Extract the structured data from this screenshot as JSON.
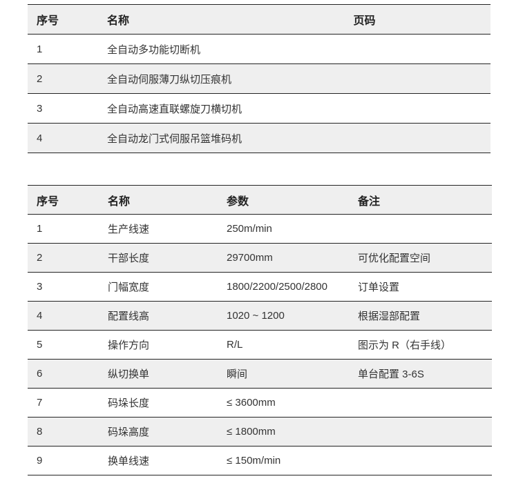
{
  "table1": {
    "headers": [
      "序号",
      "名称",
      "页码"
    ],
    "rows": [
      [
        "1",
        "全自动多功能切断机",
        ""
      ],
      [
        "2",
        "全自动伺服薄刀纵切压痕机",
        ""
      ],
      [
        "3",
        "全自动高速直联螺旋刀横切机",
        ""
      ],
      [
        "4",
        "全自动龙门式伺服吊篮堆码机",
        ""
      ]
    ]
  },
  "table2": {
    "headers": [
      "序号",
      "名称",
      "参数",
      "备注"
    ],
    "rows": [
      [
        "1",
        "生产线速",
        "250m/min",
        ""
      ],
      [
        "2",
        "干部长度",
        "29700mm",
        "可优化配置空间"
      ],
      [
        "3",
        "门幅宽度",
        "1800/2200/2500/2800",
        "订单设置"
      ],
      [
        "4",
        "配置线高",
        "1020 ~ 1200",
        "根据湿部配置"
      ],
      [
        "5",
        "操作方向",
        "R/L",
        "图示为 R（右手线）"
      ],
      [
        "6",
        "纵切换单",
        "瞬间",
        "单台配置 3-6S"
      ],
      [
        "7",
        "码垛长度",
        "≤ 3600mm",
        ""
      ],
      [
        "8",
        "码垛高度",
        "≤ 1800mm",
        ""
      ],
      [
        "9",
        "换单线速",
        "≤ 150m/min",
        ""
      ]
    ]
  },
  "colors": {
    "header_bg": "#efefef",
    "stripe_bg": "#efefef",
    "border": "#222222",
    "text": "#333333"
  }
}
